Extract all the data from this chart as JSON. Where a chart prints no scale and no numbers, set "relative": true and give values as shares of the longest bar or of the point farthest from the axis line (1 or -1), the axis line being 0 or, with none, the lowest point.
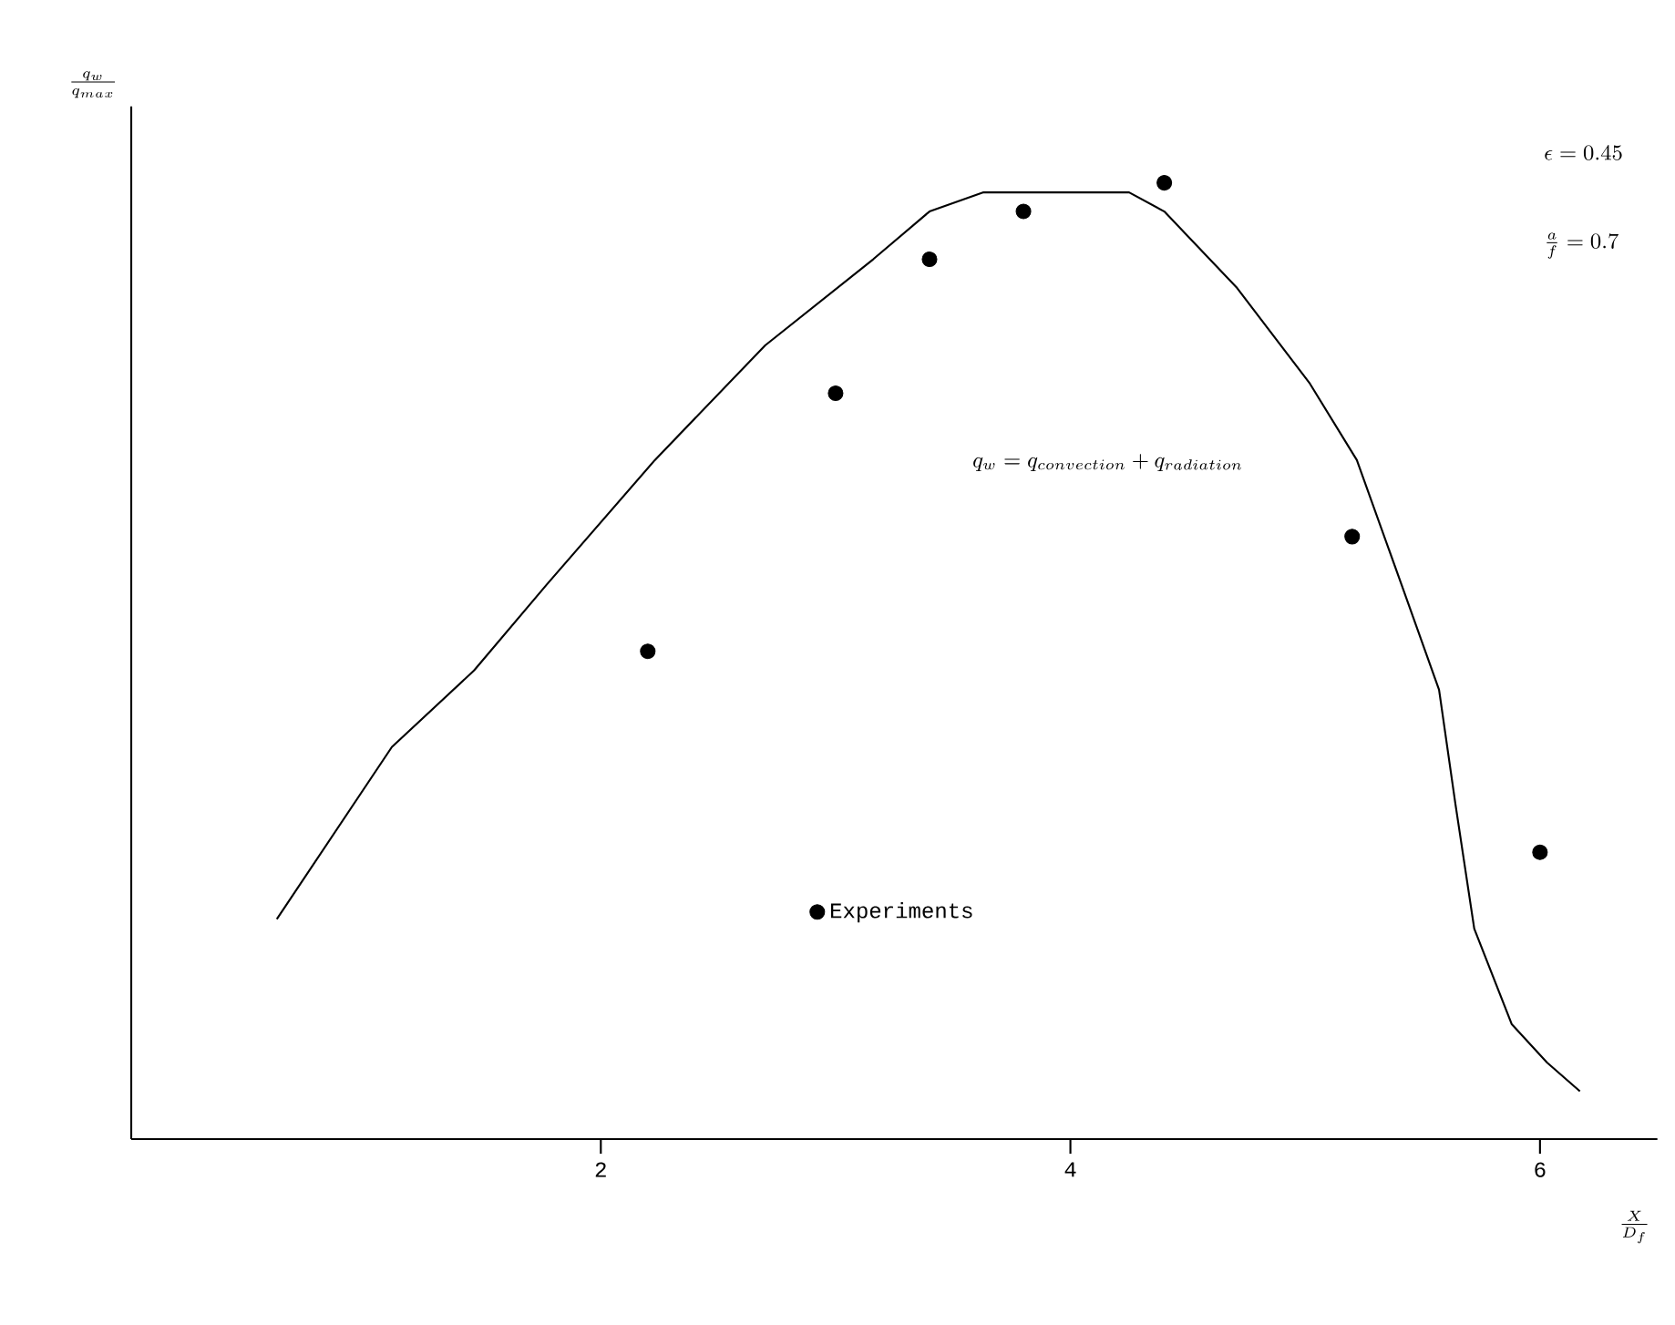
{
  "chart_data": {
    "type": "line",
    "relative": true,
    "xlabel": "\\frac{X}{D_{f}}",
    "ylabel": "\\frac{q_{w}}{q_{max}}",
    "xlim": [
      0,
      6.5
    ],
    "xticks": [
      2,
      4,
      6
    ],
    "legend": "bottom",
    "grid": false,
    "annotations": [
      "\\epsilon = 0.45",
      "\\frac{a}{f} = 0.7",
      "q_{w} = q_{convection} + q_{radiation}"
    ],
    "series": [
      {
        "color": "#000000",
        "marker": "none",
        "line_style": "solid",
        "x": [
          0.62,
          1.11,
          1.46,
          1.77,
          2.23,
          2.7,
          3.16,
          3.4,
          3.63,
          3.94,
          4.25,
          4.4,
          4.71,
          5.02,
          5.22,
          5.41,
          5.57,
          5.64,
          5.72,
          5.88,
          6.03,
          6.17
        ],
        "values": [
          0.23,
          0.41,
          0.49,
          0.58,
          0.71,
          0.83,
          0.92,
          0.97,
          0.99,
          0.99,
          0.99,
          0.97,
          0.89,
          0.79,
          0.71,
          0.58,
          0.47,
          0.35,
          0.22,
          0.12,
          0.08,
          0.05
        ]
      },
      {
        "type": "scatter",
        "name": "Experiments",
        "color": "#000000",
        "marker": "circle",
        "x": [
          2.2,
          3.0,
          3.4,
          3.8,
          4.4,
          5.2,
          6.0
        ],
        "values": [
          0.51,
          0.78,
          0.92,
          0.97,
          1.0,
          0.63,
          0.3
        ]
      }
    ]
  }
}
